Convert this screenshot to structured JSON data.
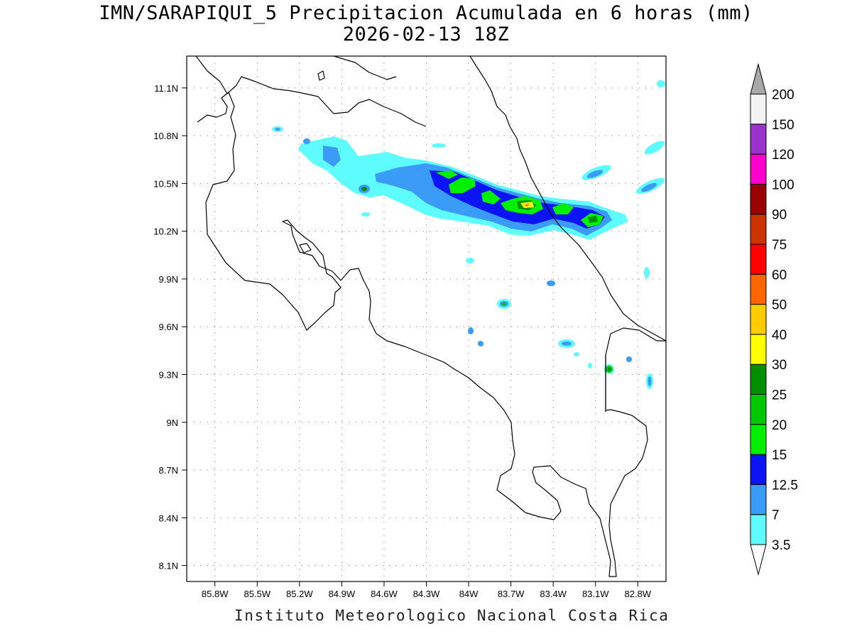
{
  "title": {
    "line1": "IMN/SARAPIQUI_5 Precipitacion Acumulada en 6 horas (mm)",
    "line2": "2026-02-13 18Z"
  },
  "footer": "Instituto Meteorologico Nacional Costa Rica",
  "map": {
    "lon_range": [
      -86.0,
      -82.6
    ],
    "lat_range": [
      8.0,
      11.3
    ],
    "x_ticks": [
      "85.8W",
      "85.5W",
      "85.2W",
      "84.9W",
      "84.6W",
      "84.3W",
      "84W",
      "83.7W",
      "83.4W",
      "83.1W",
      "82.8W"
    ],
    "y_ticks": [
      "11.1N",
      "10.8N",
      "10.5N",
      "10.2N",
      "9.9N",
      "9.6N",
      "9.3N",
      "9N",
      "8.7N",
      "8.4N",
      "8.1N"
    ],
    "x_tick_values": [
      -85.8,
      -85.5,
      -85.2,
      -84.9,
      -84.6,
      -84.3,
      -84.0,
      -83.7,
      -83.4,
      -83.1,
      -82.8
    ],
    "y_tick_values": [
      11.1,
      10.8,
      10.5,
      10.2,
      9.9,
      9.6,
      9.3,
      9.0,
      8.7,
      8.4,
      8.1
    ],
    "grid": "dotted"
  },
  "colorbar": {
    "labels": [
      "3.5",
      "7",
      "12.5",
      "15",
      "20",
      "25",
      "30",
      "40",
      "50",
      "60",
      "75",
      "90",
      "100",
      "120",
      "150",
      "200"
    ],
    "colors": [
      "#5ffcff",
      "#3b9cf7",
      "#0a14f5",
      "#00f000",
      "#00c800",
      "#008f00",
      "#ffff00",
      "#ffcc00",
      "#ff6600",
      "#ff0000",
      "#cc3300",
      "#990000",
      "#ff00cc",
      "#9933cc",
      "#f4f4f4",
      "#a8a8a8"
    ]
  }
}
